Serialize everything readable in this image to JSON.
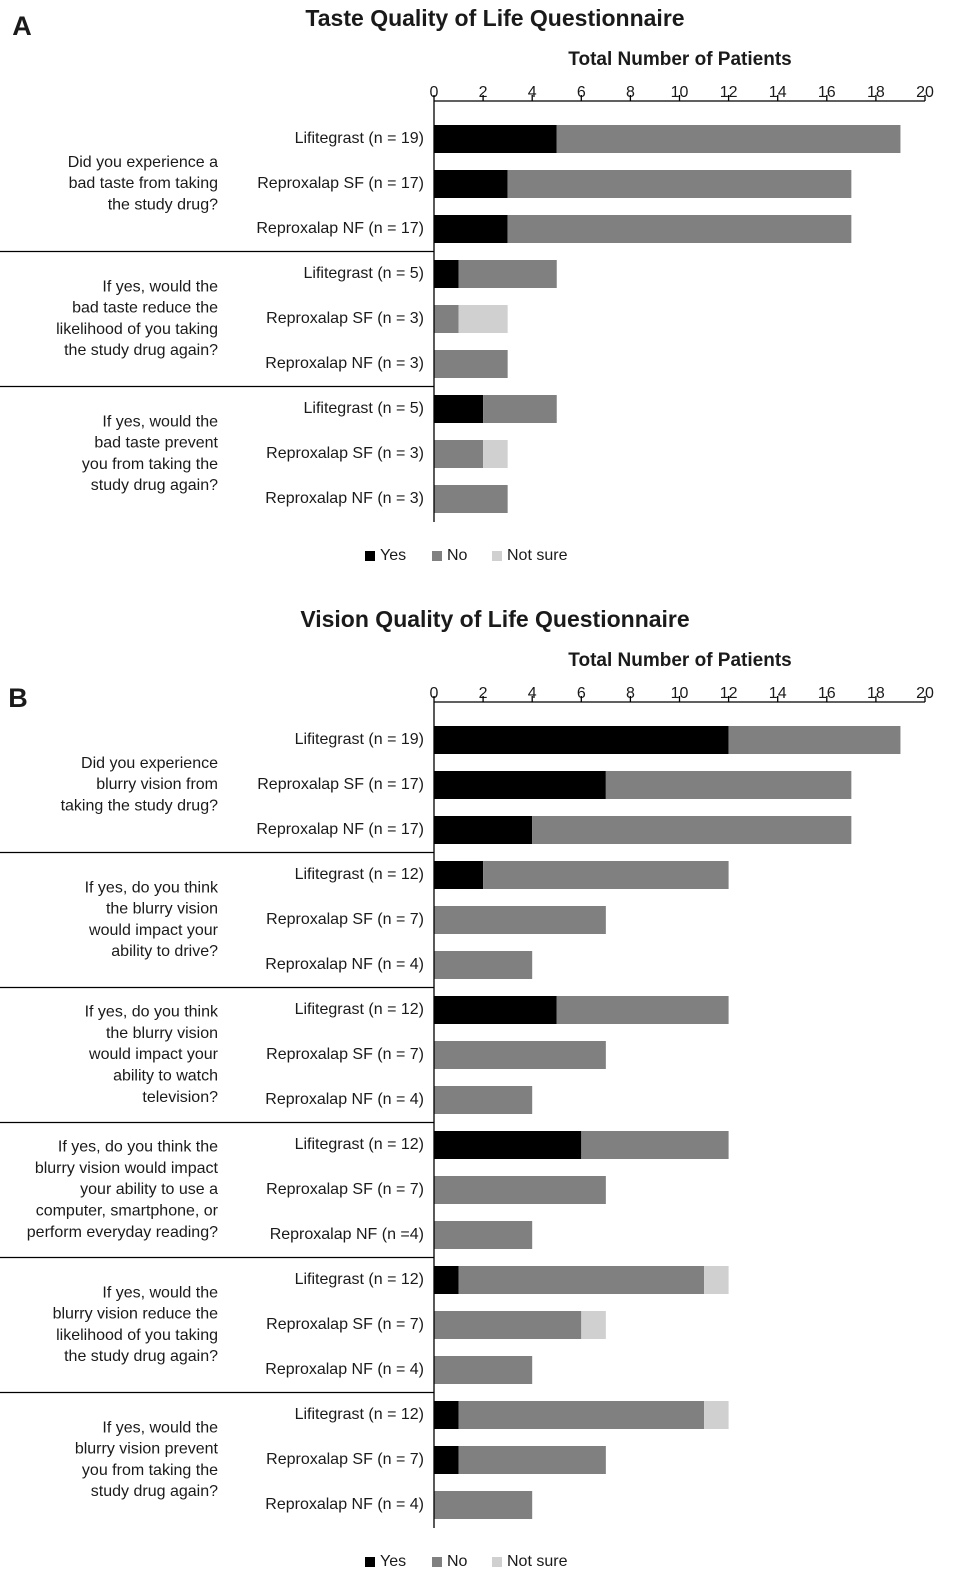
{
  "chart_data": [
    {
      "type": "bar",
      "orientation": "horizontal",
      "stacked": true,
      "panel": "A",
      "title": "Taste Quality of Life Questionnaire",
      "x_label": "Total Number of Patients",
      "xlim": [
        0,
        20
      ],
      "xticks": [
        0,
        2,
        4,
        6,
        8,
        10,
        12,
        14,
        16,
        18,
        20
      ],
      "groups": [
        {
          "question": [
            "Did you experience a",
            "bad taste from taking",
            "the study drug?"
          ],
          "categories": [
            "Lifitegrast (n = 19)",
            "Reproxalap SF (n = 17)",
            "Reproxalap NF (n = 17)"
          ]
        },
        {
          "question": [
            "If yes, would the",
            "bad taste reduce the",
            "likelihood of you taking",
            "the study drug again?"
          ],
          "categories": [
            "Lifitegrast (n = 5)",
            "Reproxalap SF (n = 3)",
            "Reproxalap NF (n = 3)"
          ]
        },
        {
          "question": [
            "If yes, would the",
            "bad taste prevent",
            "you from taking the",
            "study drug again?"
          ],
          "categories": [
            "Lifitegrast (n = 5)",
            "Reproxalap SF (n = 3)",
            "Reproxalap NF (n = 3)"
          ]
        }
      ],
      "series": [
        {
          "name": "Yes",
          "color": "#000000",
          "values": [
            5,
            3,
            3,
            1,
            0,
            0,
            2,
            0,
            0
          ]
        },
        {
          "name": "No",
          "color": "#808080",
          "values": [
            14,
            14,
            14,
            4,
            1,
            3,
            3,
            2,
            3
          ]
        },
        {
          "name": "Not sure",
          "color": "#d0d0d0",
          "values": [
            0,
            0,
            0,
            0,
            2,
            0,
            0,
            1,
            0
          ]
        }
      ]
    },
    {
      "type": "bar",
      "orientation": "horizontal",
      "stacked": true,
      "panel": "B",
      "title": "Vision Quality of Life Questionnaire",
      "x_label": "Total Number of Patients",
      "xlim": [
        0,
        20
      ],
      "xticks": [
        0,
        2,
        4,
        6,
        8,
        10,
        12,
        14,
        16,
        18,
        20
      ],
      "groups": [
        {
          "question": [
            "Did you experience",
            "blurry vision from",
            "taking the study drug?"
          ],
          "categories": [
            "Lifitegrast (n = 19)",
            "Reproxalap SF (n = 17)",
            "Reproxalap NF (n = 17)"
          ]
        },
        {
          "question": [
            "If yes, do you think",
            "the blurry vision",
            "would impact your",
            "ability to drive?"
          ],
          "categories": [
            "Lifitegrast (n = 12)",
            "Reproxalap SF (n = 7)",
            "Reproxalap NF (n = 4)"
          ]
        },
        {
          "question": [
            "If yes, do you think",
            "the blurry vision",
            "would impact your",
            "ability to watch",
            "television?"
          ],
          "categories": [
            "Lifitegrast (n = 12)",
            "Reproxalap SF (n = 7)",
            "Reproxalap NF (n = 4)"
          ]
        },
        {
          "question": [
            "If yes, do you think the",
            "blurry vision would impact",
            "your ability to use a",
            "computer, smartphone, or",
            "perform everyday reading?"
          ],
          "categories": [
            "Lifitegrast (n = 12)",
            "Reproxalap SF (n = 7)",
            "Reproxalap NF (n =4)"
          ]
        },
        {
          "question": [
            "If yes, would the",
            "blurry vision reduce the",
            "likelihood of you taking",
            "the study drug again?"
          ],
          "categories": [
            "Lifitegrast (n = 12)",
            "Reproxalap SF (n = 7)",
            "Reproxalap NF (n = 4)"
          ]
        },
        {
          "question": [
            "If yes, would the",
            "blurry vision prevent",
            "you from taking the",
            "study drug again?"
          ],
          "categories": [
            "Lifitegrast (n = 12)",
            "Reproxalap SF (n = 7)",
            "Reproxalap NF (n = 4)"
          ]
        }
      ],
      "series": [
        {
          "name": "Yes",
          "color": "#000000",
          "values": [
            12,
            7,
            4,
            2,
            0,
            0,
            5,
            0,
            0,
            6,
            0,
            0,
            1,
            0,
            0,
            1,
            1,
            0
          ]
        },
        {
          "name": "No",
          "color": "#808080",
          "values": [
            7,
            10,
            13,
            10,
            7,
            4,
            7,
            7,
            4,
            6,
            7,
            4,
            10,
            6,
            4,
            10,
            6,
            4
          ]
        },
        {
          "name": "Not sure",
          "color": "#d0d0d0",
          "values": [
            0,
            0,
            0,
            0,
            0,
            0,
            0,
            0,
            0,
            0,
            0,
            0,
            1,
            1,
            0,
            1,
            0,
            0
          ]
        }
      ]
    }
  ]
}
